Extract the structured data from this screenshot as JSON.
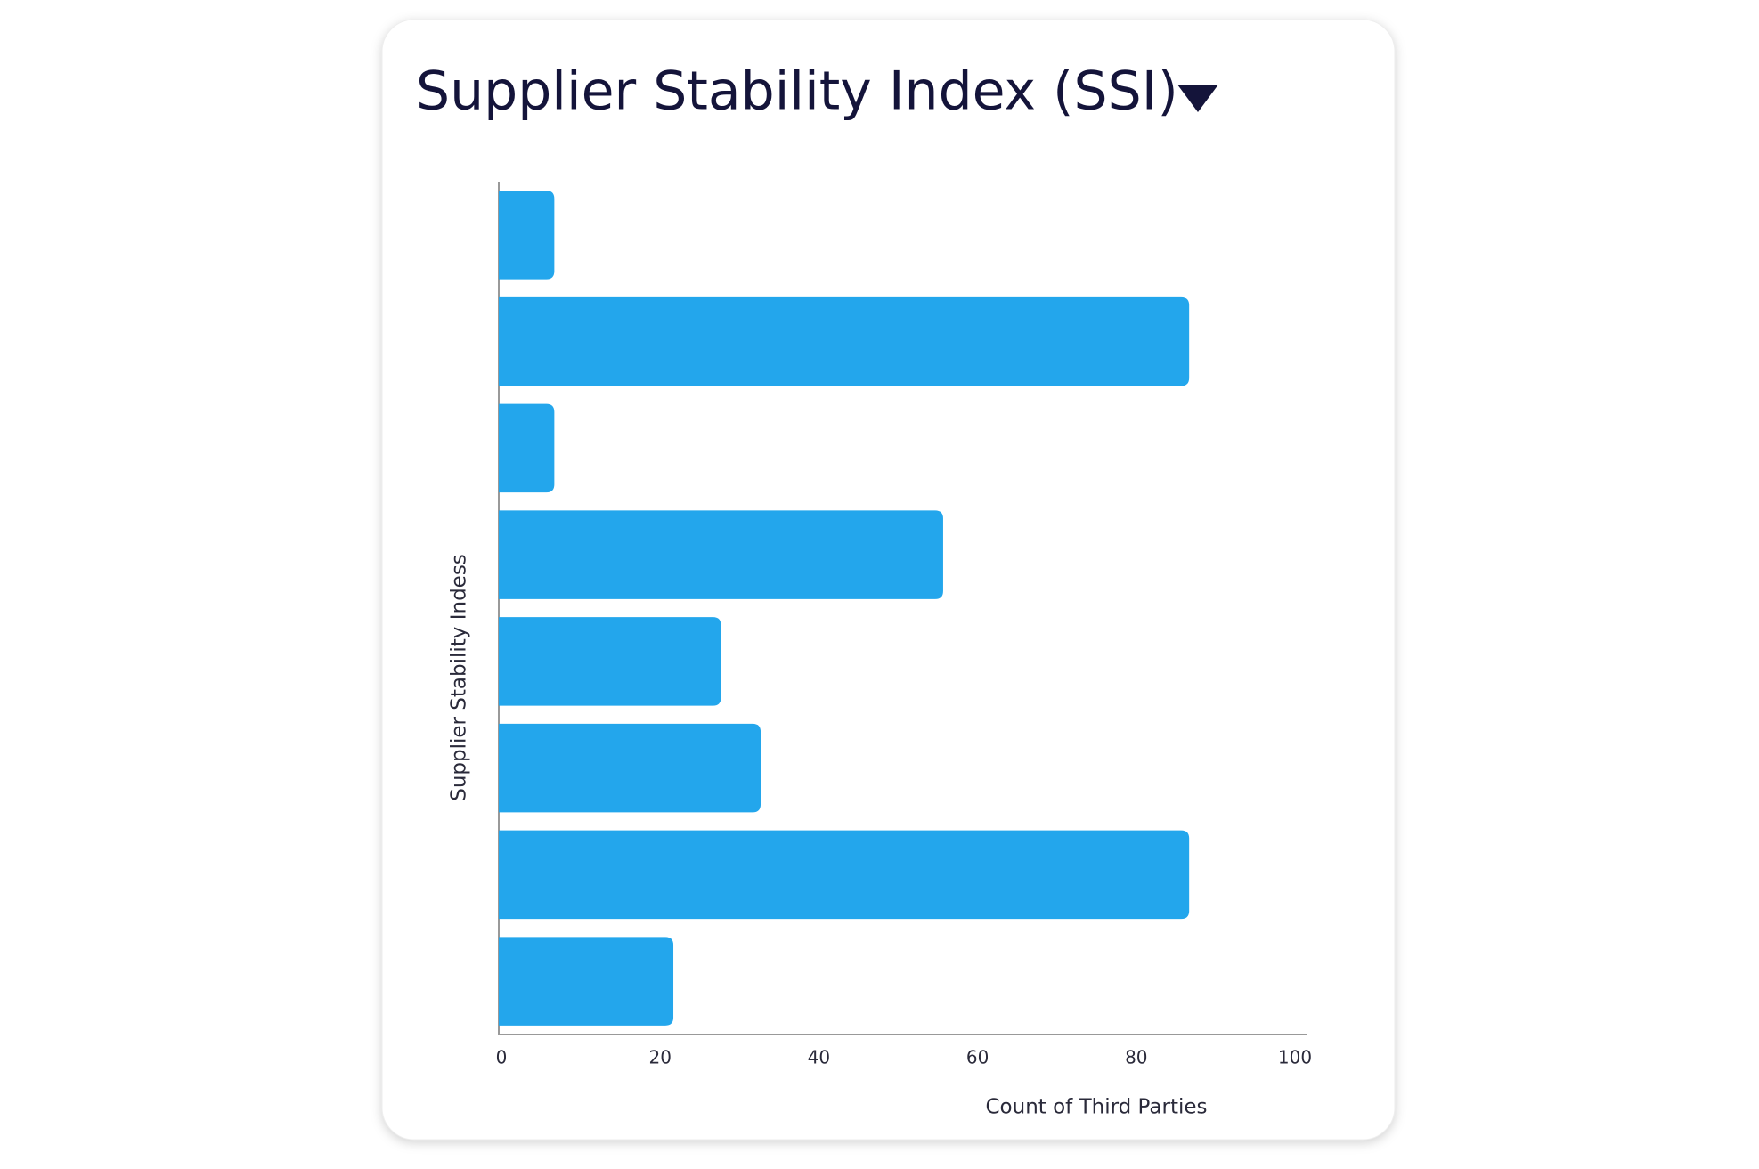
{
  "chart_data": {
    "type": "bar",
    "orientation": "horizontal",
    "title": "Supplier Stability Index (SSI)",
    "x_label": "Count of Third Parties",
    "y_label": "Supplier Stability Indess",
    "categories": [
      null,
      null,
      null,
      null,
      null,
      null,
      null,
      null
    ],
    "values": [
      7,
      87,
      7,
      56,
      28,
      33,
      87,
      22
    ],
    "color": "#23a6ec",
    "xlim": [
      0,
      100
    ],
    "xticks": [
      0,
      20,
      40,
      60,
      80,
      100
    ],
    "grid": false
  }
}
